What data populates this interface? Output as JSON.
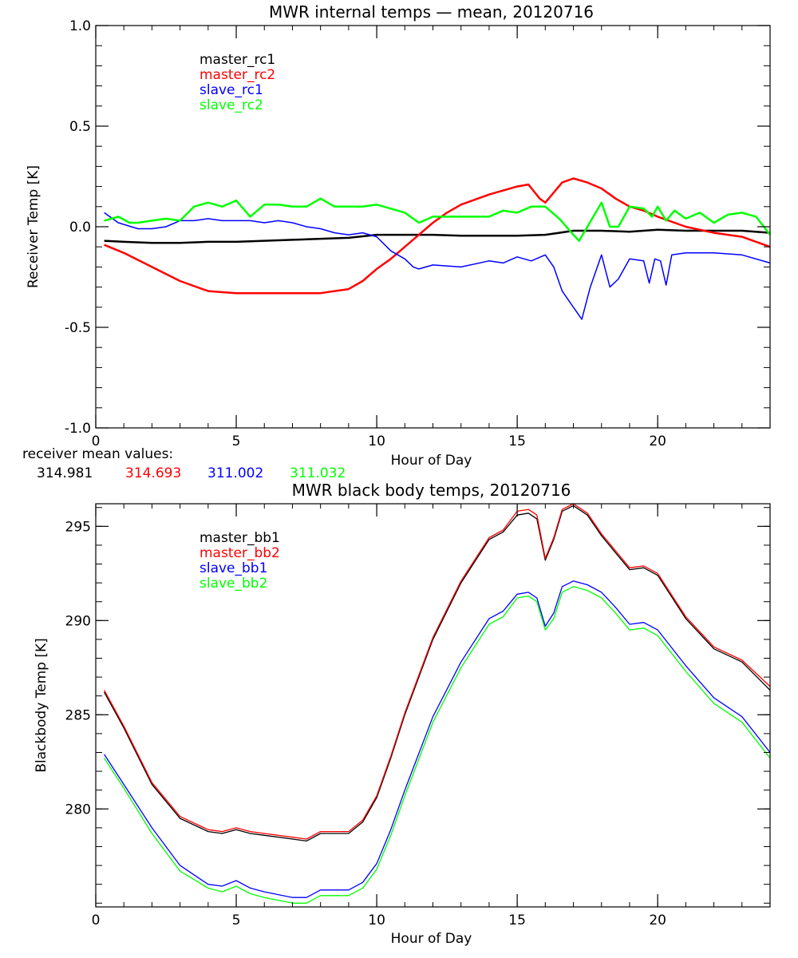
{
  "colors": {
    "black": "#000000",
    "red": "#ff0000",
    "blue": "#0000ff",
    "green": "#00ff00"
  },
  "receiver_means": {
    "caption": "receiver mean values:",
    "values": [
      {
        "text": "314.981",
        "color": "#000000"
      },
      {
        "text": "314.693",
        "color": "#ff0000"
      },
      {
        "text": "311.002",
        "color": "#0000ff"
      },
      {
        "text": "311.032",
        "color": "#00ff00"
      }
    ]
  },
  "chart_data": [
    {
      "type": "line",
      "title": "MWR internal temps — mean, 20120716",
      "xlabel": "Hour of Day",
      "ylabel": "Receiver Temp [K]",
      "xlim": [
        0,
        24
      ],
      "ylim": [
        -1.0,
        1.0
      ],
      "xticks": [
        0,
        5,
        10,
        15,
        20
      ],
      "xtick_labels": [
        "0",
        "5",
        "10",
        "15",
        "20"
      ],
      "yticks": [
        -1.0,
        -0.5,
        0.0,
        0.5,
        1.0
      ],
      "ytick_labels": [
        "-1.0",
        "-0.5",
        "0.0",
        "0.5",
        "1.0"
      ],
      "legend_position": "top-left",
      "series": [
        {
          "name": "master_rc1",
          "color": "#000000",
          "width": 2.5,
          "x": [
            0.3,
            1,
            2,
            3,
            4,
            5,
            6,
            7,
            8,
            9,
            10,
            11,
            12,
            13,
            14,
            15,
            16,
            16.5,
            17,
            18,
            19,
            20,
            21,
            22,
            23,
            24
          ],
          "y": [
            -0.07,
            -0.075,
            -0.08,
            -0.08,
            -0.075,
            -0.075,
            -0.07,
            -0.065,
            -0.06,
            -0.055,
            -0.04,
            -0.04,
            -0.04,
            -0.045,
            -0.045,
            -0.045,
            -0.04,
            -0.03,
            -0.02,
            -0.02,
            -0.025,
            -0.015,
            -0.02,
            -0.02,
            -0.02,
            -0.03
          ]
        },
        {
          "name": "master_rc2",
          "color": "#ff0000",
          "width": 2.5,
          "x": [
            0.3,
            1,
            2,
            3,
            4,
            5,
            6,
            7,
            8,
            9,
            9.5,
            10,
            10.5,
            11,
            11.5,
            12,
            12.5,
            13,
            14,
            14.5,
            15,
            15.4,
            15.8,
            16,
            16.3,
            16.6,
            17,
            17.5,
            18,
            18.5,
            19,
            19.5,
            20,
            21,
            22,
            23,
            24
          ],
          "y": [
            -0.09,
            -0.13,
            -0.2,
            -0.27,
            -0.32,
            -0.33,
            -0.33,
            -0.33,
            -0.33,
            -0.31,
            -0.27,
            -0.21,
            -0.16,
            -0.1,
            -0.04,
            0.02,
            0.07,
            0.11,
            0.16,
            0.18,
            0.2,
            0.21,
            0.14,
            0.12,
            0.17,
            0.22,
            0.24,
            0.22,
            0.19,
            0.14,
            0.1,
            0.08,
            0.05,
            0.0,
            -0.03,
            -0.05,
            -0.1
          ]
        },
        {
          "name": "slave_rc1",
          "color": "#0000ff",
          "width": 1.5,
          "x": [
            0.3,
            0.8,
            1.5,
            2,
            2.5,
            3,
            3.5,
            4,
            4.5,
            5,
            5.5,
            6,
            6.5,
            7,
            7.5,
            8,
            8.5,
            9,
            9.5,
            10,
            10.5,
            11,
            11.3,
            11.5,
            12,
            13,
            14,
            14.5,
            15,
            15.5,
            16,
            16.3,
            16.6,
            17,
            17.3,
            17.6,
            18,
            18.3,
            18.6,
            19,
            19.5,
            19.7,
            19.9,
            20.1,
            20.3,
            20.5,
            21,
            22,
            23,
            24
          ],
          "y": [
            0.07,
            0.02,
            -0.01,
            -0.01,
            0.0,
            0.03,
            0.03,
            0.04,
            0.03,
            0.03,
            0.03,
            0.02,
            0.03,
            0.02,
            0.0,
            -0.01,
            -0.03,
            -0.04,
            -0.03,
            -0.05,
            -0.12,
            -0.16,
            -0.2,
            -0.21,
            -0.19,
            -0.2,
            -0.17,
            -0.18,
            -0.15,
            -0.17,
            -0.14,
            -0.2,
            -0.32,
            -0.4,
            -0.46,
            -0.3,
            -0.14,
            -0.3,
            -0.26,
            -0.16,
            -0.17,
            -0.28,
            -0.16,
            -0.17,
            -0.29,
            -0.14,
            -0.13,
            -0.13,
            -0.14,
            -0.18
          ]
        },
        {
          "name": "slave_rc2",
          "color": "#00ff00",
          "width": 2.5,
          "x": [
            0.3,
            0.8,
            1.2,
            1.5,
            2,
            2.5,
            3,
            3.5,
            4,
            4.5,
            5,
            5.5,
            6,
            6.5,
            7,
            7.5,
            8,
            8.5,
            9,
            9.5,
            10,
            10.5,
            11,
            11.5,
            12,
            13,
            14,
            14.5,
            15,
            15.5,
            16,
            16.5,
            17,
            17.2,
            17.5,
            18,
            18.3,
            18.6,
            19,
            19.5,
            19.8,
            20,
            20.3,
            20.6,
            21,
            21.5,
            22,
            22.5,
            23,
            23.5,
            24
          ],
          "y": [
            0.03,
            0.05,
            0.02,
            0.02,
            0.03,
            0.04,
            0.03,
            0.1,
            0.12,
            0.1,
            0.13,
            0.05,
            0.11,
            0.11,
            0.1,
            0.1,
            0.14,
            0.1,
            0.1,
            0.1,
            0.11,
            0.09,
            0.07,
            0.02,
            0.05,
            0.05,
            0.05,
            0.08,
            0.07,
            0.1,
            0.1,
            0.04,
            -0.04,
            -0.07,
            0.0,
            0.12,
            0.0,
            0.0,
            0.1,
            0.09,
            0.05,
            0.1,
            0.03,
            0.08,
            0.04,
            0.07,
            0.02,
            0.06,
            0.07,
            0.05,
            -0.04
          ]
        }
      ]
    },
    {
      "type": "line",
      "title": "MWR black body temps, 20120716",
      "xlabel": "Hour of Day",
      "ylabel": "Blackbody Temp [K]",
      "xlim": [
        0,
        24
      ],
      "ylim": [
        274.8,
        296.2
      ],
      "xticks": [
        0,
        5,
        10,
        15,
        20
      ],
      "xtick_labels": [
        "0",
        "5",
        "10",
        "15",
        "20"
      ],
      "yticks": [
        280,
        285,
        290,
        295
      ],
      "ytick_labels": [
        "280",
        "285",
        "290",
        "295"
      ],
      "legend_position": "top-left",
      "series": [
        {
          "name": "master_bb1",
          "color": "#000000",
          "width": 1.3,
          "x": [
            0.3,
            1,
            2,
            3,
            4,
            4.5,
            5,
            5.5,
            6,
            7,
            7.5,
            8,
            9,
            9.5,
            10,
            10.5,
            11,
            12,
            13,
            14,
            14.5,
            15,
            15.4,
            15.7,
            16,
            16.3,
            16.6,
            17,
            17.5,
            18,
            18.5,
            19,
            19.5,
            20,
            21,
            22,
            23,
            24
          ],
          "y": [
            286.2,
            284.3,
            281.3,
            279.5,
            278.8,
            278.7,
            278.9,
            278.7,
            278.6,
            278.4,
            278.3,
            278.7,
            278.7,
            279.3,
            280.6,
            282.7,
            285.0,
            289.0,
            292.0,
            294.3,
            294.7,
            295.6,
            295.7,
            295.4,
            293.2,
            294.3,
            295.8,
            296.1,
            295.6,
            294.5,
            293.6,
            292.7,
            292.8,
            292.4,
            290.1,
            288.5,
            287.8,
            286.3
          ]
        },
        {
          "name": "master_bb2",
          "color": "#ff0000",
          "width": 1.3,
          "x": [
            0.3,
            1,
            2,
            3,
            4,
            4.5,
            5,
            5.5,
            6,
            7,
            7.5,
            8,
            9,
            9.5,
            10,
            10.5,
            11,
            12,
            13,
            14,
            14.5,
            15,
            15.4,
            15.7,
            16,
            16.3,
            16.6,
            17,
            17.5,
            18,
            18.5,
            19,
            19.5,
            20,
            21,
            22,
            23,
            24
          ],
          "y": [
            286.3,
            284.4,
            281.4,
            279.6,
            278.9,
            278.8,
            279.0,
            278.8,
            278.7,
            278.5,
            278.4,
            278.8,
            278.8,
            279.4,
            280.7,
            282.8,
            285.1,
            289.1,
            292.1,
            294.4,
            294.8,
            295.8,
            295.9,
            295.6,
            293.3,
            294.4,
            295.9,
            296.2,
            295.7,
            294.6,
            293.7,
            292.8,
            292.9,
            292.5,
            290.2,
            288.6,
            287.9,
            286.5
          ]
        },
        {
          "name": "slave_bb1",
          "color": "#0000ff",
          "width": 1.3,
          "x": [
            0.3,
            1,
            2,
            3,
            4,
            4.5,
            5,
            5.5,
            6,
            7,
            7.5,
            8,
            9,
            9.5,
            10,
            10.5,
            11,
            12,
            13,
            14,
            14.5,
            15,
            15.4,
            15.7,
            16,
            16.3,
            16.6,
            17,
            17.5,
            18,
            18.5,
            19,
            19.5,
            20,
            21,
            22,
            23,
            24
          ],
          "y": [
            282.9,
            281.3,
            279.0,
            277.0,
            276.0,
            275.9,
            276.2,
            275.8,
            275.6,
            275.3,
            275.3,
            275.7,
            275.7,
            276.1,
            277.1,
            278.9,
            281.0,
            284.9,
            287.8,
            290.1,
            290.5,
            291.4,
            291.5,
            291.2,
            289.7,
            290.4,
            291.8,
            292.1,
            291.9,
            291.5,
            290.7,
            289.8,
            289.9,
            289.5,
            287.6,
            285.9,
            284.9,
            283.0
          ]
        },
        {
          "name": "slave_bb2",
          "color": "#00ff00",
          "width": 1.3,
          "x": [
            0.3,
            1,
            2,
            3,
            4,
            4.5,
            5,
            5.5,
            6,
            7,
            7.5,
            8,
            9,
            9.5,
            10,
            10.5,
            11,
            12,
            13,
            14,
            14.5,
            15,
            15.4,
            15.7,
            16,
            16.3,
            16.6,
            17,
            17.5,
            18,
            18.5,
            19,
            19.5,
            20,
            21,
            22,
            23,
            24
          ],
          "y": [
            282.7,
            281.1,
            278.7,
            276.7,
            275.8,
            275.6,
            275.9,
            275.5,
            275.3,
            275.0,
            275.0,
            275.4,
            275.4,
            275.8,
            276.8,
            278.6,
            280.7,
            284.6,
            287.5,
            289.8,
            290.2,
            291.2,
            291.3,
            291.0,
            289.5,
            290.1,
            291.5,
            291.8,
            291.6,
            291.2,
            290.4,
            289.5,
            289.6,
            289.2,
            287.3,
            285.6,
            284.6,
            282.7
          ]
        }
      ]
    }
  ]
}
